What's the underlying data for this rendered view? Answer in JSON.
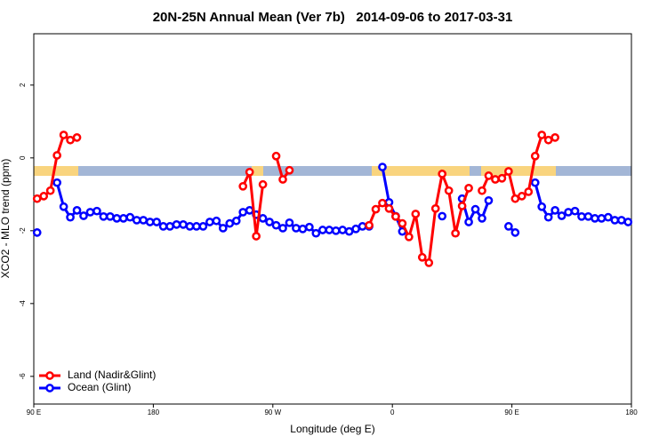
{
  "chart_data": {
    "type": "line",
    "title": "20N-25N Annual Mean (Ver 7b)   2014-09-06 to 2017-03-31",
    "x_label": "Longitude (deg E)",
    "y_label": "XCO2 - MLO trend (ppm)",
    "xlim": [
      90,
      540
    ],
    "ylim": [
      -6.76,
      3.41
    ],
    "xticks": [
      {
        "value": 90,
        "label": "90 E"
      },
      {
        "value": 180,
        "label": "180"
      },
      {
        "value": 270,
        "label": "90 W"
      },
      {
        "value": 360,
        "label": "0"
      },
      {
        "value": 450,
        "label": "90 E"
      },
      {
        "value": 540,
        "label": "180"
      }
    ],
    "yticks": [
      -6,
      -4,
      -2,
      0,
      2
    ],
    "legend": "bottom-left",
    "x": [
      92.5,
      97.5,
      102.5,
      107.5,
      112.5,
      117.5,
      122.5,
      127.5,
      132.5,
      137.5,
      142.5,
      147.5,
      152.5,
      157.5,
      162.5,
      167.5,
      172.5,
      177.5,
      182.5,
      187.5,
      192.5,
      197.5,
      202.5,
      207.5,
      212.5,
      217.5,
      222.5,
      227.5,
      232.5,
      237.5,
      242.5,
      247.5,
      252.5,
      257.5,
      262.5,
      267.5,
      272.5,
      277.5,
      282.5,
      287.5,
      292.5,
      297.5,
      302.5,
      307.5,
      312.5,
      317.5,
      322.5,
      327.5,
      332.5,
      337.5,
      342.5,
      347.5,
      352.5,
      357.5,
      362.5,
      367.5,
      372.5,
      377.5,
      382.5,
      387.5,
      392.5,
      397.5,
      402.5,
      407.5,
      412.5,
      417.5,
      422.5,
      427.5,
      432.5,
      437.5,
      442.5,
      447.5,
      452.5,
      457.5,
      462.5,
      467.5,
      472.5,
      477.5,
      482.5,
      487.5,
      492.5,
      497.5,
      502.5,
      507.5,
      512.5,
      517.5,
      522.5,
      527.5,
      532.5,
      537.5
    ],
    "series": [
      {
        "name": "Land (Nadir&Glint)",
        "color": "#ff0000",
        "values": [
          -1.12,
          -1.05,
          -0.9,
          0.07,
          0.63,
          0.49,
          0.56,
          null,
          null,
          null,
          null,
          null,
          null,
          null,
          null,
          null,
          null,
          null,
          null,
          null,
          null,
          null,
          null,
          null,
          null,
          null,
          null,
          null,
          null,
          null,
          null,
          -0.78,
          -0.39,
          -2.15,
          -0.73,
          null,
          0.05,
          -0.59,
          -0.34,
          null,
          null,
          null,
          null,
          null,
          null,
          null,
          null,
          null,
          null,
          null,
          -1.85,
          -1.41,
          -1.24,
          -1.39,
          -1.61,
          -1.8,
          -2.17,
          -1.54,
          -2.73,
          -2.88,
          -1.39,
          -0.44,
          -0.9,
          -2.07,
          -1.32,
          -0.83,
          null,
          -0.9,
          -0.49,
          -0.59,
          -0.56,
          -0.37,
          -1.12,
          -1.05,
          -0.93,
          0.05,
          0.63,
          0.49,
          0.56,
          null,
          null,
          null,
          null,
          null,
          null,
          null,
          null,
          null,
          null,
          null
        ]
      },
      {
        "name": "Ocean (Glint)",
        "color": "#0000ff",
        "values": [
          -2.05,
          null,
          null,
          -0.68,
          -1.34,
          -1.63,
          -1.44,
          -1.59,
          -1.49,
          -1.46,
          -1.61,
          -1.61,
          -1.66,
          -1.66,
          -1.63,
          -1.71,
          -1.71,
          -1.76,
          -1.76,
          -1.88,
          -1.88,
          -1.83,
          -1.83,
          -1.88,
          -1.88,
          -1.88,
          -1.76,
          -1.73,
          -1.93,
          -1.8,
          -1.73,
          -1.49,
          -1.44,
          -1.56,
          -1.66,
          -1.76,
          -1.85,
          -1.93,
          -1.78,
          -1.93,
          -1.95,
          -1.9,
          -2.07,
          -1.98,
          -1.98,
          -2.0,
          -1.98,
          -2.02,
          -1.95,
          -1.88,
          -1.88,
          null,
          -0.25,
          -1.22,
          -1.6,
          -2.02,
          null,
          null,
          null,
          null,
          null,
          -1.6,
          null,
          null,
          -1.12,
          -1.76,
          -1.41,
          -1.66,
          -1.17,
          null,
          null,
          -1.88,
          -2.05,
          null,
          null,
          -0.68,
          -1.34,
          -1.63,
          -1.44,
          -1.59,
          -1.49,
          -1.46,
          -1.61,
          -1.61,
          -1.66,
          -1.66,
          -1.63,
          -1.71,
          -1.71,
          -1.76
        ]
      }
    ]
  }
}
